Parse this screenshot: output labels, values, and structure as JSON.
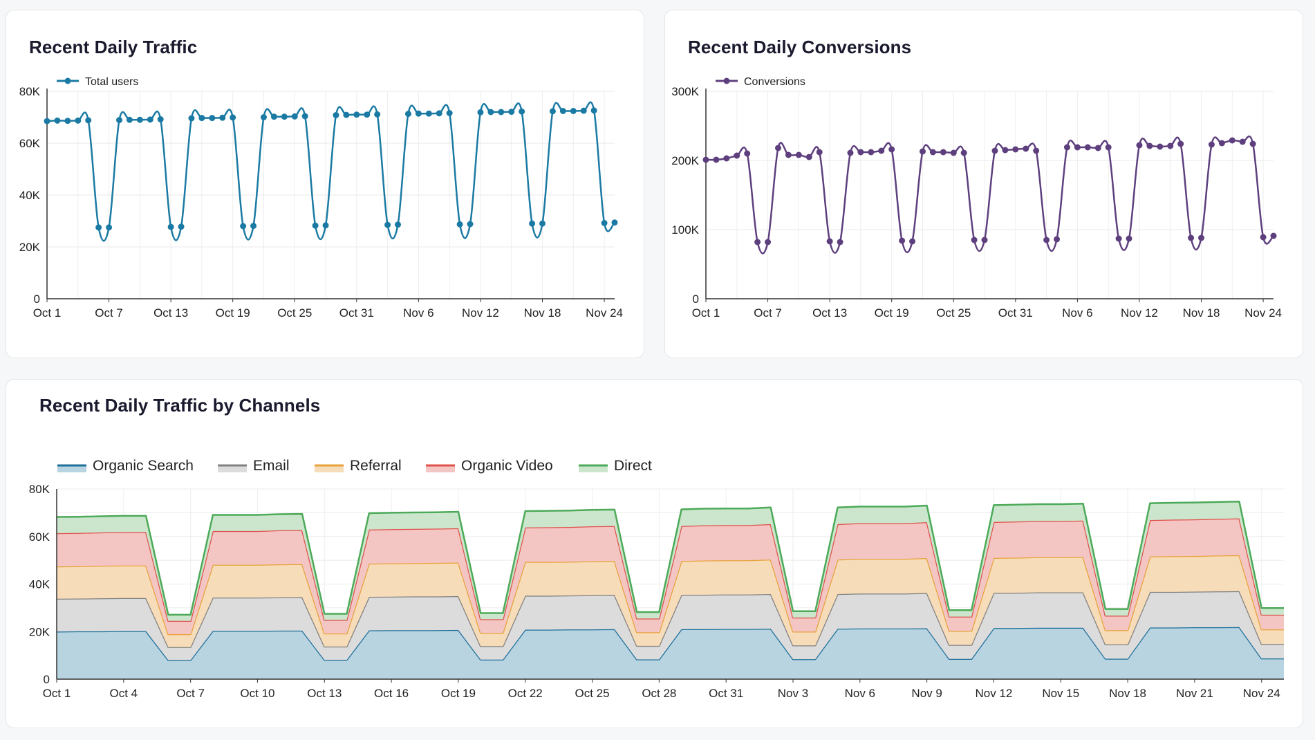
{
  "chart_data": [
    {
      "id": "traffic",
      "type": "line",
      "title": "Recent Daily Traffic",
      "series_name": "Total users",
      "color": "#1a7aa3",
      "x_labels": [
        "Oct 1",
        "Oct 2",
        "Oct 3",
        "Oct 4",
        "Oct 5",
        "Oct 6",
        "Oct 7",
        "Oct 8",
        "Oct 9",
        "Oct 10",
        "Oct 11",
        "Oct 12",
        "Oct 13",
        "Oct 14",
        "Oct 15",
        "Oct 16",
        "Oct 17",
        "Oct 18",
        "Oct 19",
        "Oct 20",
        "Oct 21",
        "Oct 22",
        "Oct 23",
        "Oct 24",
        "Oct 25",
        "Oct 26",
        "Oct 27",
        "Oct 28",
        "Oct 29",
        "Oct 30",
        "Oct 31",
        "Nov 1",
        "Nov 2",
        "Nov 3",
        "Nov 4",
        "Nov 5",
        "Nov 6",
        "Nov 7",
        "Nov 8",
        "Nov 9",
        "Nov 10",
        "Nov 11",
        "Nov 12",
        "Nov 13",
        "Nov 14",
        "Nov 15",
        "Nov 16",
        "Nov 17",
        "Nov 18",
        "Nov 19",
        "Nov 20",
        "Nov 21",
        "Nov 22",
        "Nov 23",
        "Nov 24",
        "Nov 25"
      ],
      "values": [
        68500,
        68700,
        68600,
        68700,
        68800,
        27500,
        27500,
        68900,
        69000,
        69000,
        69100,
        69200,
        27700,
        27800,
        69600,
        69700,
        69700,
        69800,
        69900,
        28000,
        28100,
        70000,
        70200,
        70200,
        70300,
        70400,
        28200,
        28300,
        70800,
        70900,
        71000,
        71000,
        71100,
        28500,
        28600,
        71300,
        71400,
        71400,
        71500,
        71600,
        28700,
        28800,
        71900,
        72000,
        72000,
        72100,
        72200,
        29000,
        29000,
        72300,
        72400,
        72400,
        72500,
        72600,
        29200,
        29400
      ],
      "tick_labels": [
        "Oct 1",
        "Oct 7",
        "Oct 13",
        "Oct 19",
        "Oct 25",
        "Oct 31",
        "Nov 6",
        "Nov 12",
        "Nov 18",
        "Nov 24"
      ],
      "tick_indices": [
        0,
        6,
        12,
        18,
        24,
        30,
        36,
        42,
        48,
        54
      ],
      "y_ticks": [
        0,
        20000,
        40000,
        60000,
        80000
      ],
      "y_tick_labels": [
        "0",
        "20K",
        "40K",
        "60K",
        "80K"
      ],
      "ylim": [
        0,
        80000
      ]
    },
    {
      "id": "conversions",
      "type": "line",
      "title": "Recent Daily Conversions",
      "series_name": "Conversions",
      "color": "#5e3f7e",
      "x_labels": [
        "Oct 1",
        "Oct 2",
        "Oct 3",
        "Oct 4",
        "Oct 5",
        "Oct 6",
        "Oct 7",
        "Oct 8",
        "Oct 9",
        "Oct 10",
        "Oct 11",
        "Oct 12",
        "Oct 13",
        "Oct 14",
        "Oct 15",
        "Oct 16",
        "Oct 17",
        "Oct 18",
        "Oct 19",
        "Oct 20",
        "Oct 21",
        "Oct 22",
        "Oct 23",
        "Oct 24",
        "Oct 25",
        "Oct 26",
        "Oct 27",
        "Oct 28",
        "Oct 29",
        "Oct 30",
        "Oct 31",
        "Nov 1",
        "Nov 2",
        "Nov 3",
        "Nov 4",
        "Nov 5",
        "Nov 6",
        "Nov 7",
        "Nov 8",
        "Nov 9",
        "Nov 10",
        "Nov 11",
        "Nov 12",
        "Nov 13",
        "Nov 14",
        "Nov 15",
        "Nov 16",
        "Nov 17",
        "Nov 18",
        "Nov 19",
        "Nov 20",
        "Nov 21",
        "Nov 22",
        "Nov 23",
        "Nov 24",
        "Nov 25"
      ],
      "values": [
        201000,
        201000,
        203000,
        207000,
        210000,
        82000,
        82000,
        218000,
        208000,
        208000,
        205000,
        212000,
        83000,
        82000,
        211000,
        212000,
        212000,
        214000,
        216000,
        84000,
        83000,
        213000,
        212000,
        212000,
        211000,
        211000,
        85000,
        85000,
        214000,
        215000,
        216000,
        217000,
        214000,
        85000,
        86000,
        219000,
        219000,
        219000,
        218000,
        219000,
        87000,
        87000,
        222000,
        221000,
        220000,
        221000,
        224000,
        88000,
        88000,
        223000,
        225000,
        229000,
        227000,
        224000,
        89000,
        91000
      ],
      "tick_labels": [
        "Oct 1",
        "Oct 7",
        "Oct 13",
        "Oct 19",
        "Oct 25",
        "Oct 31",
        "Nov 6",
        "Nov 12",
        "Nov 18",
        "Nov 24"
      ],
      "tick_indices": [
        0,
        6,
        12,
        18,
        24,
        30,
        36,
        42,
        48,
        54
      ],
      "y_ticks": [
        0,
        100000,
        200000,
        300000
      ],
      "y_tick_labels": [
        "0",
        "100K",
        "200K",
        "300K"
      ],
      "ylim": [
        0,
        300000
      ]
    },
    {
      "id": "channels",
      "type": "area",
      "stacked": true,
      "title": "Recent Daily Traffic by Channels",
      "x_labels": [
        "Oct 1",
        "Oct 2",
        "Oct 3",
        "Oct 4",
        "Oct 5",
        "Oct 6",
        "Oct 7",
        "Oct 8",
        "Oct 9",
        "Oct 10",
        "Oct 11",
        "Oct 12",
        "Oct 13",
        "Oct 14",
        "Oct 15",
        "Oct 16",
        "Oct 17",
        "Oct 18",
        "Oct 19",
        "Oct 20",
        "Oct 21",
        "Oct 22",
        "Oct 23",
        "Oct 24",
        "Oct 25",
        "Oct 26",
        "Oct 27",
        "Oct 28",
        "Oct 29",
        "Oct 30",
        "Oct 31",
        "Nov 1",
        "Nov 2",
        "Nov 3",
        "Nov 4",
        "Nov 5",
        "Nov 6",
        "Nov 7",
        "Nov 8",
        "Nov 9",
        "Nov 10",
        "Nov 11",
        "Nov 12",
        "Nov 13",
        "Nov 14",
        "Nov 15",
        "Nov 16",
        "Nov 17",
        "Nov 18",
        "Nov 19",
        "Nov 20",
        "Nov 21",
        "Nov 22",
        "Nov 23",
        "Nov 24",
        "Nov 25"
      ],
      "tick_labels": [
        "Oct 1",
        "Oct 4",
        "Oct 7",
        "Oct 10",
        "Oct 13",
        "Oct 16",
        "Oct 19",
        "Oct 22",
        "Oct 25",
        "Oct 28",
        "Oct 31",
        "Nov 3",
        "Nov 6",
        "Nov 9",
        "Nov 12",
        "Nov 15",
        "Nov 18",
        "Nov 21",
        "Nov 24"
      ],
      "tick_indices": [
        0,
        3,
        6,
        9,
        12,
        15,
        18,
        21,
        24,
        27,
        30,
        33,
        36,
        39,
        42,
        45,
        48,
        51,
        54
      ],
      "y_ticks": [
        0,
        20000,
        40000,
        60000,
        80000
      ],
      "y_tick_labels": [
        "0",
        "20K",
        "40K",
        "60K",
        "80K"
      ],
      "ylim": [
        0,
        80000
      ],
      "series": [
        {
          "name": "Organic Search",
          "color": "#1d6e9a",
          "fill": "#b8d4e0",
          "values": [
            20000,
            20100,
            20100,
            20200,
            20200,
            8000,
            8000,
            20300,
            20300,
            20300,
            20400,
            20400,
            8100,
            8100,
            20500,
            20600,
            20600,
            20600,
            20700,
            8200,
            8200,
            20800,
            20800,
            20900,
            20900,
            21000,
            8300,
            8300,
            21000,
            21000,
            21100,
            21100,
            21200,
            8400,
            8400,
            21200,
            21300,
            21300,
            21300,
            21400,
            8500,
            8500,
            21500,
            21500,
            21600,
            21600,
            21600,
            8600,
            8600,
            21700,
            21700,
            21800,
            21800,
            21900,
            8700,
            8700
          ]
        },
        {
          "name": "Email",
          "color": "#808080",
          "fill": "#dcdcdc",
          "values": [
            13800,
            13800,
            13900,
            13900,
            13900,
            5500,
            5500,
            14000,
            14000,
            14000,
            14000,
            14100,
            5600,
            5600,
            14100,
            14100,
            14200,
            14200,
            14200,
            5700,
            5700,
            14300,
            14300,
            14300,
            14400,
            14400,
            5700,
            5700,
            14400,
            14500,
            14500,
            14500,
            14600,
            5800,
            5800,
            14600,
            14700,
            14700,
            14700,
            14800,
            5900,
            5900,
            14800,
            14800,
            14900,
            14900,
            14900,
            6000,
            6000,
            15000,
            15000,
            15000,
            15100,
            15100,
            6100,
            6100
          ]
        },
        {
          "name": "Referral",
          "color": "#e8a23a",
          "fill": "#f6dcb8",
          "values": [
            13600,
            13600,
            13700,
            13700,
            13700,
            5400,
            5400,
            13800,
            13800,
            13800,
            13900,
            13900,
            5500,
            5500,
            14000,
            14000,
            14000,
            14100,
            14100,
            5600,
            5600,
            14200,
            14200,
            14200,
            14300,
            14300,
            5700,
            5700,
            14300,
            14400,
            14400,
            14400,
            14500,
            5800,
            5800,
            14500,
            14600,
            14600,
            14600,
            14700,
            5900,
            5900,
            14700,
            14800,
            14800,
            14800,
            14900,
            6000,
            6000,
            14900,
            15000,
            15000,
            15100,
            15100,
            6100,
            6100
          ]
        },
        {
          "name": "Organic Video",
          "color": "#e0504a",
          "fill": "#f3c6c4",
          "values": [
            14000,
            14000,
            14000,
            14100,
            14100,
            5600,
            5600,
            14200,
            14200,
            14200,
            14300,
            14300,
            5700,
            5700,
            14300,
            14400,
            14400,
            14400,
            14500,
            5700,
            5700,
            14500,
            14600,
            14600,
            14700,
            14700,
            5800,
            5800,
            14700,
            14800,
            14800,
            14800,
            14900,
            5900,
            5900,
            14900,
            15000,
            15000,
            15000,
            15100,
            6000,
            6000,
            15100,
            15200,
            15200,
            15200,
            15300,
            6100,
            6100,
            15300,
            15400,
            15400,
            15400,
            15500,
            6200,
            6200
          ]
        },
        {
          "name": "Direct",
          "color": "#4caa58",
          "fill": "#cbe6cd",
          "values": [
            6800,
            6800,
            6800,
            6800,
            6800,
            2600,
            2600,
            6800,
            6800,
            6800,
            6800,
            6800,
            2600,
            2600,
            6900,
            6900,
            6900,
            6900,
            6900,
            2600,
            2600,
            6900,
            6900,
            6900,
            6900,
            6900,
            2700,
            2700,
            7000,
            7000,
            7000,
            7000,
            7000,
            2700,
            2700,
            7000,
            7000,
            7000,
            7000,
            7000,
            2700,
            2700,
            7100,
            7100,
            7100,
            7100,
            7100,
            2800,
            2800,
            7100,
            7100,
            7100,
            7100,
            7100,
            2800,
            2800
          ]
        }
      ]
    }
  ]
}
